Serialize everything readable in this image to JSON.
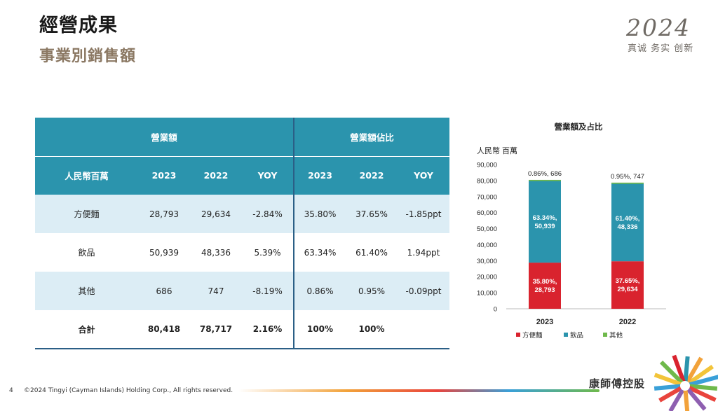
{
  "page": {
    "title": "經營成果",
    "subtitle": "事業別銷售額",
    "brand_year": "2024",
    "brand_slogan": "真诚 务实 创新",
    "page_number": "4",
    "copyright": "©2024 Tingyi (Cayman Islands) Holding Corp., All rights reserved.",
    "company": "康師傅控股"
  },
  "table": {
    "group_sales": "營業額",
    "group_share": "營業額佔比",
    "unit": "人民幣百萬",
    "col_2023": "2023",
    "col_2022": "2022",
    "col_yoy": "YOY",
    "rows": [
      {
        "name": "方便麵",
        "v2023": "28,793",
        "v2022": "29,634",
        "yoy": "-2.84%",
        "s2023": "35.80%",
        "s2022": "37.65%",
        "syoy": "-1.85ppt"
      },
      {
        "name": "飲品",
        "v2023": "50,939",
        "v2022": "48,336",
        "yoy": "5.39%",
        "s2023": "63.34%",
        "s2022": "61.40%",
        "syoy": "1.94ppt"
      },
      {
        "name": "其他",
        "v2023": "686",
        "v2022": "747",
        "yoy": "-8.19%",
        "s2023": "0.86%",
        "s2022": "0.95%",
        "syoy": "-0.09ppt"
      },
      {
        "name": "合計",
        "v2023": "80,418",
        "v2022": "78,717",
        "yoy": "2.16%",
        "s2023": "100%",
        "s2022": "100%",
        "syoy": ""
      }
    ]
  },
  "chart_data": {
    "type": "bar",
    "stacked": true,
    "title": "營業額及占比",
    "ylabel": "人民幣 百萬",
    "categories": [
      "2023",
      "2022"
    ],
    "ylim": [
      0,
      90000
    ],
    "yticks": [
      0,
      10000,
      20000,
      30000,
      40000,
      50000,
      60000,
      70000,
      80000,
      90000
    ],
    "ytick_labels": [
      "0",
      "10,000",
      "20,000",
      "30,000",
      "40,000",
      "50,000",
      "60,000",
      "70,000",
      "80,000",
      "90,000"
    ],
    "grid": false,
    "legend": "bottom",
    "series": [
      {
        "name": "方便麵",
        "color": "#d9232e",
        "values": [
          28793,
          29634
        ],
        "labels": [
          [
            "35.80%,",
            "28,793"
          ],
          [
            "37.65%,",
            "29,634"
          ]
        ]
      },
      {
        "name": "飲品",
        "color": "#2b94ad",
        "values": [
          50939,
          48336
        ],
        "labels": [
          [
            "63.34%,",
            "50,939"
          ],
          [
            "61.40%,",
            "48,336"
          ]
        ]
      },
      {
        "name": "其他",
        "color": "#6fb94b",
        "values": [
          686,
          747
        ],
        "labels": [
          [
            "0.86%, 686"
          ],
          [
            "0.95%, 747"
          ]
        ]
      }
    ]
  }
}
